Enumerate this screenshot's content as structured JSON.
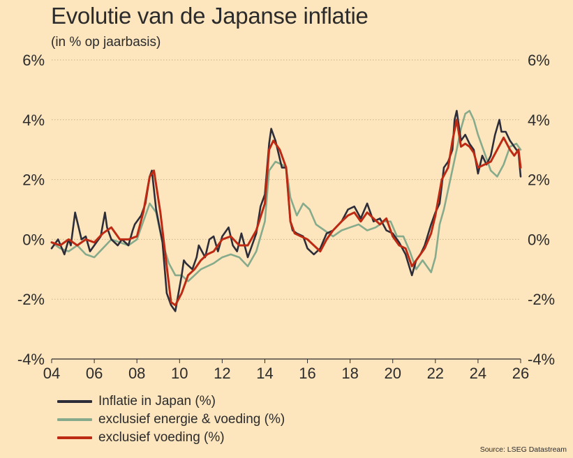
{
  "title": "Evolutie van de Japanse inflatie",
  "subtitle": "(in % op jaarbasis)",
  "source": "Source: LSEG Datastream",
  "colors": {
    "background": "#fde5bd",
    "grid": "#c9b48a",
    "text": "#2b2b2b"
  },
  "chart_data": {
    "type": "line",
    "title": "Evolutie van de Japanse inflatie",
    "subtitle": "(in % op jaarbasis)",
    "xlabel": "",
    "ylabel": "",
    "xlim": [
      2004,
      2026
    ],
    "ylim": [
      -4,
      6
    ],
    "x_ticks": [
      2004,
      2006,
      2008,
      2010,
      2012,
      2014,
      2016,
      2018,
      2020,
      2022,
      2024,
      2026
    ],
    "x_tick_labels": [
      "04",
      "06",
      "08",
      "10",
      "12",
      "14",
      "16",
      "18",
      "20",
      "22",
      "24",
      "26"
    ],
    "y_ticks": [
      -4,
      -2,
      0,
      2,
      4,
      6
    ],
    "y_tick_labels": [
      "-4%",
      "-2%",
      "0%",
      "2%",
      "4%",
      "6%"
    ],
    "grid": "horizontal dotted",
    "y_axis_both_sides": true,
    "legend_position": "bottom-left",
    "series": [
      {
        "name": "Inflatie in Japan (%)",
        "color": "#2d2d3a",
        "x": [
          2004.0,
          2004.3,
          2004.6,
          2004.8,
          2004.9,
          2005.1,
          2005.4,
          2005.6,
          2005.8,
          2006.0,
          2006.3,
          2006.5,
          2006.6,
          2006.8,
          2007.1,
          2007.3,
          2007.6,
          2007.8,
          2007.9,
          2008.2,
          2008.4,
          2008.6,
          2008.7,
          2008.9,
          2009.2,
          2009.4,
          2009.6,
          2009.8,
          2009.9,
          2010.1,
          2010.2,
          2010.3,
          2010.6,
          2010.8,
          2010.9,
          2011.2,
          2011.4,
          2011.6,
          2011.8,
          2012.0,
          2012.3,
          2012.5,
          2012.7,
          2012.9,
          2013.2,
          2013.4,
          2013.6,
          2013.8,
          2014.0,
          2014.2,
          2014.3,
          2014.5,
          2014.8,
          2015.0,
          2015.2,
          2015.3,
          2015.5,
          2015.8,
          2016.0,
          2016.3,
          2016.6,
          2016.9,
          2017.2,
          2017.6,
          2017.9,
          2018.2,
          2018.5,
          2018.8,
          2019.1,
          2019.4,
          2019.7,
          2020.0,
          2020.3,
          2020.6,
          2020.9,
          2021.1,
          2021.3,
          2021.5,
          2021.8,
          2022.0,
          2022.2,
          2022.4,
          2022.6,
          2022.8,
          2022.9,
          2023.0,
          2023.2,
          2023.4,
          2023.6,
          2023.8,
          2024.0,
          2024.2,
          2024.4,
          2024.6,
          2024.8,
          2025.0,
          2025.1,
          2025.3,
          2025.5,
          2025.7,
          2025.9,
          2026.0
        ],
        "values": [
          -0.3,
          0.0,
          -0.5,
          0.0,
          -0.2,
          0.9,
          0.0,
          0.1,
          -0.4,
          -0.2,
          0.1,
          0.9,
          0.4,
          0.0,
          -0.2,
          0.0,
          -0.2,
          0.3,
          0.5,
          0.8,
          1.2,
          2.1,
          2.3,
          1.0,
          -0.1,
          -1.8,
          -2.2,
          -2.4,
          -2.0,
          -1.2,
          -0.7,
          -0.8,
          -1.0,
          -0.6,
          -0.2,
          -0.6,
          0.0,
          0.1,
          -0.4,
          0.1,
          0.4,
          -0.2,
          -0.4,
          0.2,
          -0.6,
          -0.2,
          0.2,
          1.1,
          1.5,
          3.2,
          3.7,
          3.3,
          2.4,
          2.4,
          0.6,
          0.3,
          0.2,
          0.1,
          -0.3,
          -0.5,
          -0.3,
          0.2,
          0.3,
          0.6,
          1.0,
          1.1,
          0.7,
          1.2,
          0.6,
          0.7,
          0.3,
          0.2,
          -0.1,
          -0.5,
          -1.2,
          -0.7,
          -0.5,
          -0.2,
          0.5,
          0.9,
          1.2,
          2.4,
          2.6,
          3.0,
          4.0,
          4.3,
          3.3,
          3.5,
          3.2,
          3.0,
          2.2,
          2.8,
          2.5,
          2.8,
          3.5,
          4.0,
          3.6,
          3.6,
          3.3,
          3.1,
          2.9,
          2.1
        ]
      },
      {
        "name": "exclusief energie & voeding (%)",
        "color": "#86ab8c",
        "x": [
          2004.0,
          2004.4,
          2004.8,
          2005.2,
          2005.6,
          2006.0,
          2006.4,
          2006.8,
          2007.2,
          2007.6,
          2008.0,
          2008.3,
          2008.6,
          2008.9,
          2009.2,
          2009.5,
          2009.8,
          2010.1,
          2010.4,
          2010.7,
          2011.0,
          2011.3,
          2011.6,
          2012.0,
          2012.4,
          2012.8,
          2013.2,
          2013.6,
          2014.0,
          2014.2,
          2014.5,
          2014.8,
          2015.0,
          2015.2,
          2015.5,
          2015.8,
          2016.1,
          2016.4,
          2016.8,
          2017.2,
          2017.6,
          2018.0,
          2018.4,
          2018.8,
          2019.2,
          2019.6,
          2019.9,
          2020.2,
          2020.5,
          2020.8,
          2021.1,
          2021.4,
          2021.6,
          2021.8,
          2022.0,
          2022.2,
          2022.4,
          2022.7,
          2023.0,
          2023.2,
          2023.4,
          2023.6,
          2023.8,
          2024.0,
          2024.3,
          2024.6,
          2024.9,
          2025.2,
          2025.5,
          2025.8,
          2026.0
        ],
        "values": [
          -0.1,
          -0.3,
          -0.4,
          -0.2,
          -0.5,
          -0.6,
          -0.3,
          0.0,
          -0.1,
          -0.2,
          0.0,
          0.6,
          1.2,
          0.9,
          -0.1,
          -0.8,
          -1.2,
          -1.2,
          -1.4,
          -1.2,
          -1.0,
          -0.9,
          -0.8,
          -0.6,
          -0.5,
          -0.6,
          -0.9,
          -0.4,
          0.6,
          2.3,
          2.6,
          2.5,
          2.4,
          1.4,
          0.8,
          1.2,
          1.0,
          0.5,
          0.3,
          0.1,
          0.3,
          0.4,
          0.5,
          0.3,
          0.4,
          0.6,
          0.6,
          0.1,
          0.1,
          -0.4,
          -1.0,
          -0.7,
          -0.9,
          -1.1,
          -0.6,
          0.5,
          1.0,
          2.0,
          3.0,
          3.7,
          4.2,
          4.3,
          4.0,
          3.5,
          2.9,
          2.3,
          2.1,
          2.5,
          3.1,
          3.2,
          3.0
        ]
      },
      {
        "name": "exclusief voeding (%)",
        "color": "#bc2a14",
        "x": [
          2004.0,
          2004.4,
          2004.8,
          2005.2,
          2005.6,
          2006.0,
          2006.4,
          2006.8,
          2007.2,
          2007.6,
          2008.0,
          2008.3,
          2008.6,
          2008.8,
          2009.1,
          2009.4,
          2009.6,
          2009.8,
          2010.1,
          2010.4,
          2010.7,
          2011.0,
          2011.3,
          2011.6,
          2012.0,
          2012.4,
          2012.8,
          2013.2,
          2013.6,
          2014.0,
          2014.2,
          2014.4,
          2014.7,
          2015.0,
          2015.2,
          2015.4,
          2015.7,
          2016.0,
          2016.3,
          2016.6,
          2016.9,
          2017.2,
          2017.6,
          2017.9,
          2018.2,
          2018.5,
          2018.8,
          2019.1,
          2019.4,
          2019.7,
          2020.0,
          2020.3,
          2020.6,
          2020.9,
          2021.2,
          2021.5,
          2021.8,
          2022.0,
          2022.3,
          2022.6,
          2022.8,
          2023.0,
          2023.2,
          2023.4,
          2023.6,
          2023.8,
          2024.0,
          2024.3,
          2024.6,
          2024.9,
          2025.2,
          2025.5,
          2025.7,
          2025.9,
          2026.0
        ],
        "values": [
          -0.1,
          -0.2,
          0.0,
          -0.2,
          0.0,
          -0.1,
          0.2,
          0.4,
          0.0,
          0.0,
          0.1,
          0.9,
          2.1,
          2.3,
          0.9,
          -0.9,
          -2.1,
          -2.2,
          -1.8,
          -1.2,
          -1.0,
          -0.7,
          -0.5,
          -0.4,
          0.0,
          0.1,
          -0.2,
          -0.2,
          0.3,
          1.2,
          3.0,
          3.3,
          3.0,
          2.4,
          0.6,
          0.2,
          0.1,
          0.0,
          -0.2,
          -0.4,
          0.0,
          0.3,
          0.6,
          0.8,
          0.9,
          0.6,
          0.9,
          0.7,
          0.5,
          0.7,
          0.1,
          -0.2,
          -0.3,
          -0.9,
          -0.6,
          -0.3,
          0.2,
          0.8,
          2.0,
          2.4,
          3.3,
          4.0,
          3.1,
          3.2,
          3.1,
          2.9,
          2.4,
          2.5,
          2.6,
          3.0,
          3.4,
          3.0,
          2.8,
          3.0,
          2.4
        ]
      }
    ]
  }
}
